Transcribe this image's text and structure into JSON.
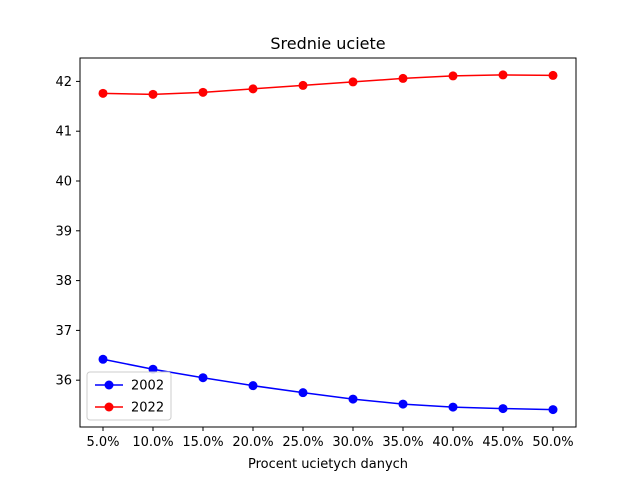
{
  "chart_data": {
    "type": "line",
    "title": "Srednie uciete",
    "xlabel": "Procent ucietych danych",
    "ylabel": "",
    "categories": [
      "5.0%",
      "10.0%",
      "15.0%",
      "20.0%",
      "25.0%",
      "30.0%",
      "35.0%",
      "40.0%",
      "45.0%",
      "50.0%"
    ],
    "yticks": [
      36,
      37,
      38,
      39,
      40,
      41,
      42
    ],
    "ylim": [
      35.06,
      42.47
    ],
    "grid": false,
    "legend_position": "lower-left",
    "series": [
      {
        "name": "2002",
        "color": "#0000ff",
        "marker": "circle",
        "values": [
          36.42,
          36.22,
          36.05,
          35.89,
          35.75,
          35.62,
          35.52,
          35.46,
          35.43,
          35.41
        ]
      },
      {
        "name": "2022",
        "color": "#ff0000",
        "marker": "circle",
        "values": [
          41.76,
          41.74,
          41.78,
          41.85,
          41.92,
          41.99,
          42.06,
          42.11,
          42.13,
          42.12
        ]
      }
    ]
  }
}
